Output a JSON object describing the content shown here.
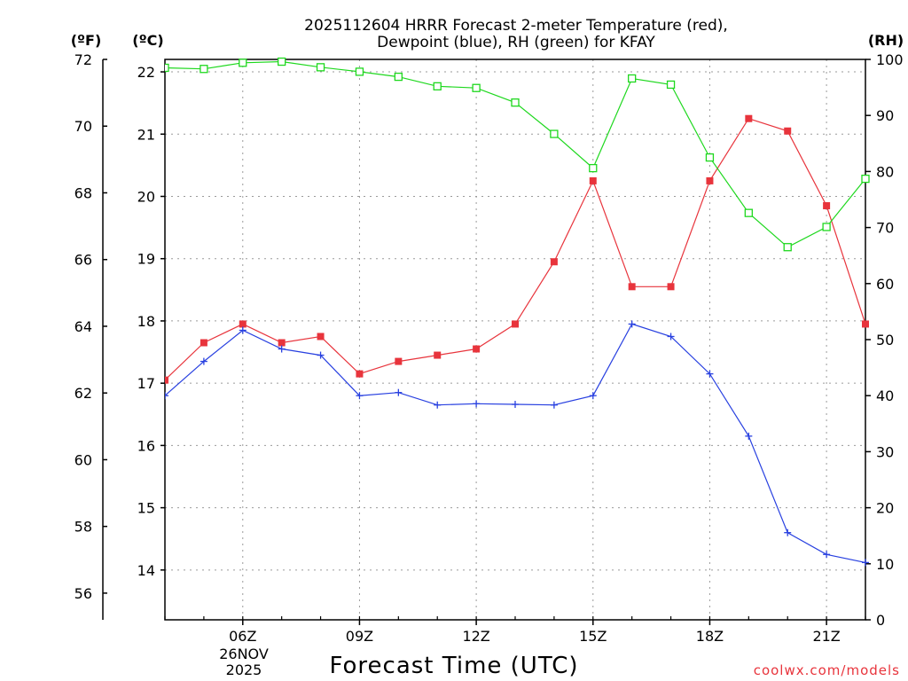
{
  "chart_data": {
    "type": "line",
    "title_line1": "2025112604 HRRR Forecast 2-meter Temperature (red),",
    "title_line2": "Dewpoint (blue), RH (green) for KFAY",
    "xlabel": "Forecast Time (UTC)",
    "date_label_line1": "26NOV",
    "date_label_line2": "2025",
    "credit": "coolwx.com/models",
    "left_outer_axis": {
      "unit": "(ºF)",
      "range": [
        55.2,
        72
      ],
      "ticks": [
        "56",
        "58",
        "60",
        "62",
        "64",
        "66",
        "68",
        "70",
        "72"
      ]
    },
    "left_inner_axis": {
      "unit": "(ºC)",
      "range": [
        13.2,
        22.2
      ],
      "ticks": [
        "14",
        "15",
        "16",
        "17",
        "18",
        "19",
        "20",
        "21",
        "22"
      ]
    },
    "right_axis": {
      "unit": "(RH)",
      "range": [
        0,
        100
      ],
      "ticks": [
        "0",
        "10",
        "20",
        "30",
        "40",
        "50",
        "60",
        "70",
        "80",
        "90",
        "100"
      ]
    },
    "x_range": [
      4,
      22
    ],
    "x_ticks": [
      {
        "hour": 6,
        "label": "06Z"
      },
      {
        "hour": 9,
        "label": "09Z"
      },
      {
        "hour": 12,
        "label": "12Z"
      },
      {
        "hour": 15,
        "label": "15Z"
      },
      {
        "hour": 18,
        "label": "18Z"
      },
      {
        "hour": 21,
        "label": "21Z"
      }
    ],
    "x": [
      4,
      5,
      6,
      7,
      8,
      9,
      10,
      11,
      12,
      13,
      14,
      15,
      16,
      17,
      18,
      19,
      20,
      21,
      22
    ],
    "series": [
      {
        "name": "Temperature",
        "axis": "celsius",
        "color": "#e8343c",
        "marker": "filled-square",
        "values": [
          17.05,
          17.65,
          17.95,
          17.65,
          17.75,
          17.15,
          17.35,
          17.45,
          17.55,
          17.95,
          18.95,
          20.25,
          18.55,
          18.55,
          20.25,
          21.25,
          21.05,
          19.85,
          17.95
        ]
      },
      {
        "name": "Dewpoint",
        "axis": "celsius",
        "color": "#2840e0",
        "marker": "plus",
        "values": [
          16.8,
          17.35,
          17.85,
          17.55,
          17.45,
          16.8,
          16.85,
          16.65,
          16.67,
          16.66,
          16.65,
          16.8,
          17.95,
          17.75,
          17.15,
          16.15,
          14.6,
          14.25,
          14.12
        ]
      },
      {
        "name": "RH",
        "axis": "rh",
        "color": "#1ed81e",
        "marker": "open-square",
        "values": [
          98.5,
          98.3,
          99.4,
          99.6,
          98.6,
          97.8,
          96.9,
          95.2,
          94.9,
          92.3,
          86.7,
          80.6,
          96.6,
          95.5,
          82.5,
          72.6,
          66.5,
          70.1,
          78.7
        ]
      }
    ]
  }
}
